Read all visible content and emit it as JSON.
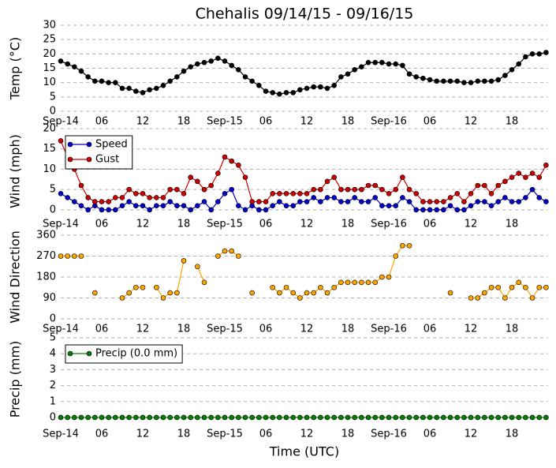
{
  "chart_data": [
    {
      "type": "line",
      "title": "Chehalis 09/14/15 - 09/16/15",
      "ylabel": "Temp (°C)",
      "x": [
        0,
        1,
        2,
        3,
        4,
        5,
        6,
        7,
        8,
        9,
        10,
        11,
        12,
        13,
        14,
        15,
        16,
        17,
        18,
        19,
        20,
        21,
        22,
        23,
        24,
        25,
        26,
        27,
        28,
        29,
        30,
        31,
        32,
        33,
        34,
        35,
        36,
        37,
        38,
        39,
        40,
        41,
        42,
        43,
        44,
        45,
        46,
        47,
        48,
        49,
        50,
        51,
        52,
        53,
        54,
        55,
        56,
        57,
        58,
        59,
        60,
        61,
        62,
        63,
        64,
        65,
        66,
        67,
        68,
        69,
        70,
        71
      ],
      "series": [
        {
          "color": "#000000",
          "values": [
            17.5,
            16.5,
            15.5,
            14,
            12,
            10.5,
            10.5,
            10,
            10,
            8,
            8,
            7,
            6.5,
            7.5,
            8,
            9,
            10.5,
            12,
            14,
            15.5,
            16.5,
            17,
            17.5,
            18.5,
            17.5,
            16,
            14.5,
            12,
            10.5,
            9,
            7,
            6.5,
            6,
            6.5,
            6.5,
            7.5,
            8,
            8.5,
            8.5,
            8,
            9,
            12,
            13,
            14.5,
            15.5,
            17,
            17,
            17,
            16.5,
            16.5,
            16,
            13,
            12,
            11.5,
            11,
            10.5,
            10.5,
            10.5,
            10.5,
            10,
            10,
            10.5,
            10.5,
            10.5,
            11,
            12.5,
            14.5,
            16.5,
            19,
            20,
            20,
            20.5
          ]
        }
      ],
      "xlim": [
        0,
        71.3
      ],
      "xticks": [
        {
          "value": 0,
          "label": "Sep-14"
        },
        {
          "value": 6,
          "label": "06"
        },
        {
          "value": 12,
          "label": "12"
        },
        {
          "value": 18,
          "label": "18"
        },
        {
          "value": 24,
          "label": "Sep-15"
        },
        {
          "value": 30,
          "label": "06"
        },
        {
          "value": 36,
          "label": "12"
        },
        {
          "value": 42,
          "label": "18"
        },
        {
          "value": 48,
          "label": "Sep-16"
        },
        {
          "value": 54,
          "label": "06"
        },
        {
          "value": 60,
          "label": "12"
        },
        {
          "value": 66,
          "label": "18"
        }
      ],
      "ylim": [
        0,
        30
      ],
      "yticks": [
        0,
        5,
        10,
        15,
        20,
        25,
        30
      ],
      "grid": true
    },
    {
      "type": "line",
      "ylabel": "Wind (mph)",
      "legend": "upper left",
      "x": [
        0,
        1,
        2,
        3,
        4,
        5,
        6,
        7,
        8,
        9,
        10,
        11,
        12,
        13,
        14,
        15,
        16,
        17,
        18,
        19,
        20,
        21,
        22,
        23,
        24,
        25,
        26,
        27,
        28,
        29,
        30,
        31,
        32,
        33,
        34,
        35,
        36,
        37,
        38,
        39,
        40,
        41,
        42,
        43,
        44,
        45,
        46,
        47,
        48,
        49,
        50,
        51,
        52,
        53,
        54,
        55,
        56,
        57,
        58,
        59,
        60,
        61,
        62,
        63,
        64,
        65,
        66,
        67,
        68,
        69,
        70,
        71
      ],
      "series": [
        {
          "name": "Speed",
          "color": "#0000cc",
          "values": [
            4,
            3,
            2,
            1,
            0,
            1,
            0,
            0,
            0,
            1,
            2,
            1,
            1,
            0,
            1,
            1,
            2,
            1,
            1,
            0,
            1,
            2,
            0,
            2,
            4,
            5,
            1,
            0,
            1,
            0,
            0,
            1,
            2,
            1,
            1,
            2,
            2,
            3,
            2,
            3,
            3,
            2,
            2,
            3,
            2,
            2,
            3,
            1,
            1,
            1,
            3,
            2,
            0,
            0,
            0,
            0,
            0,
            1,
            0,
            0,
            1,
            2,
            2,
            1,
            2,
            3,
            2,
            2,
            3,
            5,
            3,
            2
          ]
        },
        {
          "name": "Gust",
          "color": "#cc0000",
          "values": [
            17,
            13,
            10,
            6,
            3,
            2,
            2,
            2,
            3,
            3,
            5,
            4,
            4,
            3,
            3,
            3,
            5,
            5,
            4,
            8,
            7,
            5,
            6,
            9,
            13,
            12,
            11,
            8,
            2,
            2,
            2,
            4,
            4,
            4,
            4,
            4,
            4,
            5,
            5,
            7,
            8,
            5,
            5,
            5,
            5,
            6,
            6,
            5,
            4,
            5,
            8,
            5,
            4,
            2,
            2,
            2,
            2,
            3,
            4,
            2,
            4,
            6,
            6,
            4,
            6,
            7,
            8,
            9,
            8,
            9,
            8,
            11
          ]
        }
      ],
      "xlim": [
        0,
        71.3
      ],
      "xticks": [
        {
          "value": 0,
          "label": "Sep-14"
        },
        {
          "value": 6,
          "label": "06"
        },
        {
          "value": 12,
          "label": "12"
        },
        {
          "value": 18,
          "label": "18"
        },
        {
          "value": 24,
          "label": "Sep-15"
        },
        {
          "value": 30,
          "label": "06"
        },
        {
          "value": 36,
          "label": "12"
        },
        {
          "value": 42,
          "label": "18"
        },
        {
          "value": 48,
          "label": "Sep-16"
        },
        {
          "value": 54,
          "label": "06"
        },
        {
          "value": 60,
          "label": "12"
        },
        {
          "value": 66,
          "label": "18"
        }
      ],
      "ylim": [
        -1,
        20
      ],
      "yticks": [
        0,
        5,
        10,
        15,
        20
      ],
      "grid": true
    },
    {
      "type": "line",
      "ylabel": "Wind Direction",
      "x": [
        0,
        1,
        2,
        3,
        4,
        5,
        6,
        7,
        8,
        9,
        10,
        11,
        12,
        13,
        14,
        15,
        16,
        17,
        18,
        19,
        20,
        21,
        22,
        23,
        24,
        25,
        26,
        27,
        28,
        29,
        30,
        31,
        32,
        33,
        34,
        35,
        36,
        37,
        38,
        39,
        40,
        41,
        42,
        43,
        44,
        45,
        46,
        47,
        48,
        49,
        50,
        51,
        52,
        53,
        54,
        55,
        56,
        57,
        58,
        59,
        60,
        61,
        62,
        63,
        64,
        65,
        66,
        67,
        68,
        69,
        70,
        71
      ],
      "series": [
        {
          "color": "#ffa500",
          "values": [
            270,
            270,
            270,
            270,
            null,
            112,
            null,
            null,
            null,
            90,
            112,
            135,
            135,
            null,
            135,
            90,
            112,
            112,
            250,
            null,
            225,
            157,
            null,
            270,
            292,
            292,
            270,
            null,
            112,
            null,
            null,
            135,
            112,
            135,
            112,
            90,
            112,
            112,
            135,
            112,
            135,
            157,
            157,
            157,
            157,
            157,
            157,
            180,
            180,
            270,
            315,
            315,
            null,
            null,
            null,
            null,
            null,
            112,
            null,
            null,
            90,
            90,
            112,
            135,
            135,
            90,
            135,
            157,
            135,
            90,
            135,
            135
          ]
        }
      ],
      "xlim": [
        0,
        71.3
      ],
      "xticks": [
        {
          "value": 0,
          "label": "Sep-14"
        },
        {
          "value": 6,
          "label": "06"
        },
        {
          "value": 12,
          "label": "12"
        },
        {
          "value": 18,
          "label": "18"
        },
        {
          "value": 24,
          "label": "Sep-15"
        },
        {
          "value": 30,
          "label": "06"
        },
        {
          "value": 36,
          "label": "12"
        },
        {
          "value": 42,
          "label": "18"
        },
        {
          "value": 48,
          "label": "Sep-16"
        },
        {
          "value": 54,
          "label": "06"
        },
        {
          "value": 60,
          "label": "12"
        },
        {
          "value": 66,
          "label": "18"
        }
      ],
      "ylim": [
        0,
        360
      ],
      "yticks": [
        0,
        90,
        180,
        270,
        360
      ],
      "grid": true
    },
    {
      "type": "line",
      "ylabel": "Precip (mm)",
      "xlabel": "Time (UTC)",
      "legend": "upper left",
      "x": [
        0,
        1,
        2,
        3,
        4,
        5,
        6,
        7,
        8,
        9,
        10,
        11,
        12,
        13,
        14,
        15,
        16,
        17,
        18,
        19,
        20,
        21,
        22,
        23,
        24,
        25,
        26,
        27,
        28,
        29,
        30,
        31,
        32,
        33,
        34,
        35,
        36,
        37,
        38,
        39,
        40,
        41,
        42,
        43,
        44,
        45,
        46,
        47,
        48,
        49,
        50,
        51,
        52,
        53,
        54,
        55,
        56,
        57,
        58,
        59,
        60,
        61,
        62,
        63,
        64,
        65,
        66,
        67,
        68,
        69,
        70,
        71
      ],
      "series": [
        {
          "name": "Precip (0.0 mm)",
          "color": "#008000",
          "values": [
            0,
            0,
            0,
            0,
            0,
            0,
            0,
            0,
            0,
            0,
            0,
            0,
            0,
            0,
            0,
            0,
            0,
            0,
            0,
            0,
            0,
            0,
            0,
            0,
            0,
            0,
            0,
            0,
            0,
            0,
            0,
            0,
            0,
            0,
            0,
            0,
            0,
            0,
            0,
            0,
            0,
            0,
            0,
            0,
            0,
            0,
            0,
            0,
            0,
            0,
            0,
            0,
            0,
            0,
            0,
            0,
            0,
            0,
            0,
            0,
            0,
            0,
            0,
            0,
            0,
            0,
            0,
            0,
            0,
            0,
            0,
            0
          ]
        }
      ],
      "xlim": [
        0,
        71.3
      ],
      "xticks": [
        {
          "value": 0,
          "label": "Sep-14"
        },
        {
          "value": 6,
          "label": "06"
        },
        {
          "value": 12,
          "label": "12"
        },
        {
          "value": 18,
          "label": "18"
        },
        {
          "value": 24,
          "label": "Sep-15"
        },
        {
          "value": 30,
          "label": "06"
        },
        {
          "value": 36,
          "label": "12"
        },
        {
          "value": 42,
          "label": "18"
        },
        {
          "value": 48,
          "label": "Sep-16"
        },
        {
          "value": 54,
          "label": "06"
        },
        {
          "value": 60,
          "label": "12"
        },
        {
          "value": 66,
          "label": "18"
        }
      ],
      "ylim": [
        -0.2,
        5
      ],
      "yticks": [
        0,
        1,
        2,
        3,
        4,
        5
      ],
      "grid": true
    }
  ]
}
